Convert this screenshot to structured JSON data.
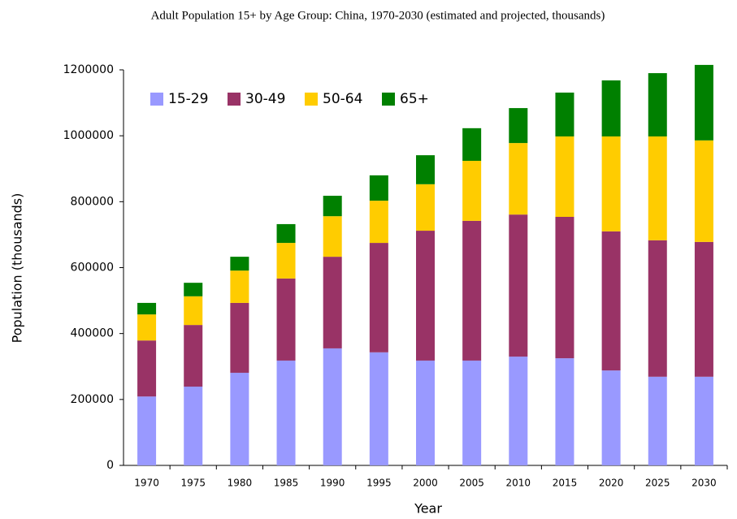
{
  "chart_data": {
    "type": "stacked_bar",
    "title": "Adult Population 15+  by Age Group: China, 1970-2030 (estimated and projected, thousands)",
    "x_label": "Year",
    "y_label": "Population (thousands)",
    "categories": [
      "1970",
      "1975",
      "1980",
      "1985",
      "1990",
      "1995",
      "2000",
      "2005",
      "2010",
      "2015",
      "2020",
      "2025",
      "2030"
    ],
    "series": [
      {
        "name": "15-29",
        "color": "#9999ff",
        "values": [
          209000,
          239000,
          281000,
          318000,
          355000,
          343000,
          318000,
          318000,
          330000,
          325000,
          288000,
          269000,
          269000
        ]
      },
      {
        "name": "30-49",
        "color": "#993366",
        "values": [
          170000,
          187000,
          212000,
          249000,
          278000,
          332000,
          394000,
          424000,
          431000,
          429000,
          422000,
          414000,
          409000
        ]
      },
      {
        "name": "50-64",
        "color": "#ffcc00",
        "values": [
          79000,
          87000,
          98000,
          108000,
          123000,
          128000,
          141000,
          182000,
          217000,
          244000,
          288000,
          315000,
          308000
        ]
      },
      {
        "name": "65+",
        "color": "#008000",
        "values": [
          35000,
          41000,
          42000,
          57000,
          62000,
          77000,
          88000,
          99000,
          106000,
          133000,
          170000,
          192000,
          229000
        ]
      }
    ],
    "ylim": [
      0,
      1200000
    ],
    "yticks": [
      0,
      200000,
      400000,
      600000,
      800000,
      1000000,
      1200000
    ],
    "grid": false,
    "legend_position": "top-left"
  }
}
